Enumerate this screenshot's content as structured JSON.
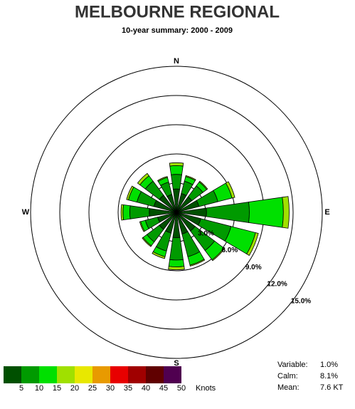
{
  "chart_data": {
    "type": "windrose",
    "title": "MELBOURNE REGIONAL",
    "subtitle": "10-year summary: 2000 - 2009",
    "categories": [
      "N",
      null,
      null,
      null,
      "E",
      null,
      null,
      null,
      "S",
      null,
      null,
      null,
      "W",
      null,
      null,
      null
    ],
    "series": [
      {
        "color": "#005000",
        "values": [
          2.4,
          2.0,
          2.0,
          2.4,
          3.1,
          2.6,
          2.4,
          2.3,
          2.6,
          2.2,
          2.2,
          2.0,
          2.8,
          2.4,
          2.2,
          1.9
        ]
      },
      {
        "color": "#009a00",
        "values": [
          1.5,
          1.3,
          1.4,
          2.0,
          4.4,
          3.2,
          2.5,
          2.4,
          2.3,
          1.9,
          1.6,
          1.3,
          2.0,
          1.8,
          1.8,
          1.3
        ]
      },
      {
        "color": "#00e000",
        "values": [
          0.9,
          0.5,
          0.5,
          1.5,
          3.5,
          2.6,
          1.2,
          0.9,
          0.7,
          0.6,
          0.5,
          0.5,
          0.7,
          0.9,
          0.7,
          0.5
        ]
      },
      {
        "color": "#a0e000",
        "values": [
          0.3,
          0.1,
          0.1,
          0.3,
          0.6,
          0.3,
          0.1,
          0.1,
          0.3,
          0.2,
          0.1,
          0.1,
          0.2,
          0.2,
          0.3,
          0.1
        ]
      }
    ],
    "ylim": [
      0,
      15
    ],
    "yticks": [
      {
        "value": 3,
        "label": "3.0%"
      },
      {
        "value": 6,
        "label": "6.0%"
      },
      {
        "value": 9,
        "label": "9.0%"
      },
      {
        "value": 12,
        "label": "12.0%"
      },
      {
        "value": 15,
        "label": "15.0%"
      }
    ],
    "legend": {
      "colors": [
        "#005000",
        "#009a00",
        "#00e000",
        "#a0e000",
        "#e8e800",
        "#e89a00",
        "#e80000",
        "#a00000",
        "#600000",
        "#500050"
      ],
      "labels": [
        5,
        10,
        15,
        20,
        25,
        30,
        35,
        40,
        45,
        50
      ],
      "unit": "Knots"
    },
    "stats": [
      {
        "label": "Variable:",
        "value": "1.0%"
      },
      {
        "label": "Calm:",
        "value": "8.1%"
      },
      {
        "label": "Mean:",
        "value": "7.6 KT"
      }
    ]
  }
}
